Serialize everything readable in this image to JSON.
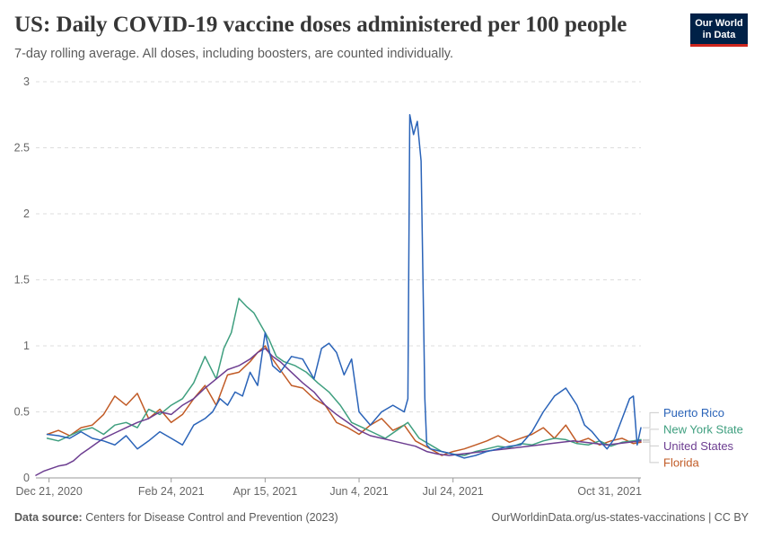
{
  "header": {
    "title": "US: Daily COVID-19 vaccine doses administered per 100 people",
    "subtitle": "7-day rolling average. All doses, including boosters, are counted individually.",
    "logo_line1": "Our World",
    "logo_line2": "in Data"
  },
  "footer": {
    "source_label": "Data source:",
    "source_text": "Centers for Disease Control and Prevention (2023)",
    "url": "OurWorldinData.org/us-states-vaccinations",
    "license": "CC BY"
  },
  "chart_data": {
    "type": "line",
    "title": "US: Daily COVID-19 vaccine doses administered per 100 people",
    "xlabel": "",
    "ylabel": "",
    "ylim": [
      0,
      3
    ],
    "yticks": [
      0,
      0.5,
      1,
      1.5,
      2,
      2.5,
      3
    ],
    "ytick_labels": [
      "0",
      "0.5",
      "1",
      "1.5",
      "2",
      "2.5",
      "3"
    ],
    "x_start": "2020-12-14",
    "x_end": "2021-11-01",
    "x_unit": "days since 2020-12-14",
    "x_range": [
      0,
      322
    ],
    "xticks": [
      7,
      72,
      122,
      172,
      222,
      321
    ],
    "xtick_labels": [
      "Dec 21, 2020",
      "Feb 24, 2021",
      "Apr 15, 2021",
      "Jun 4, 2021",
      "Jul 24, 2021",
      "Oct 31, 2021"
    ],
    "grid": "horizontal dashed",
    "legend": "right, labels at line ends",
    "series": [
      {
        "name": "Florida",
        "color": "#c15b26",
        "x": [
          6,
          12,
          18,
          24,
          30,
          36,
          42,
          48,
          54,
          60,
          66,
          72,
          78,
          84,
          90,
          96,
          102,
          108,
          114,
          118,
          122,
          126,
          130,
          136,
          142,
          148,
          154,
          160,
          166,
          172,
          178,
          184,
          190,
          196,
          202,
          206,
          210,
          216,
          222,
          228,
          234,
          240,
          246,
          252,
          258,
          264,
          270,
          276,
          282,
          288,
          294,
          300,
          306,
          312,
          318,
          322
        ],
        "y": [
          0.33,
          0.36,
          0.32,
          0.38,
          0.4,
          0.48,
          0.62,
          0.55,
          0.64,
          0.45,
          0.52,
          0.42,
          0.48,
          0.6,
          0.7,
          0.55,
          0.78,
          0.8,
          0.88,
          0.95,
          1.0,
          0.9,
          0.82,
          0.7,
          0.68,
          0.6,
          0.55,
          0.42,
          0.38,
          0.33,
          0.4,
          0.45,
          0.36,
          0.4,
          0.28,
          0.25,
          0.22,
          0.17,
          0.2,
          0.22,
          0.25,
          0.28,
          0.32,
          0.27,
          0.3,
          0.33,
          0.38,
          0.3,
          0.4,
          0.27,
          0.3,
          0.25,
          0.28,
          0.3,
          0.26,
          0.27
        ]
      },
      {
        "name": "New York State",
        "color": "#3f9f7f",
        "x": [
          6,
          12,
          18,
          24,
          30,
          36,
          42,
          48,
          54,
          60,
          66,
          72,
          78,
          84,
          90,
          96,
          100,
          104,
          108,
          112,
          116,
          120,
          124,
          128,
          132,
          138,
          144,
          150,
          156,
          162,
          168,
          174,
          180,
          186,
          192,
          198,
          204,
          210,
          216,
          222,
          228,
          234,
          240,
          246,
          252,
          258,
          264,
          270,
          276,
          282,
          288,
          294,
          300,
          306,
          312,
          318,
          322
        ],
        "y": [
          0.3,
          0.28,
          0.32,
          0.36,
          0.38,
          0.33,
          0.4,
          0.42,
          0.38,
          0.52,
          0.48,
          0.55,
          0.6,
          0.72,
          0.92,
          0.75,
          0.98,
          1.1,
          1.36,
          1.3,
          1.25,
          1.15,
          1.05,
          0.92,
          0.88,
          0.85,
          0.8,
          0.72,
          0.65,
          0.55,
          0.42,
          0.38,
          0.34,
          0.3,
          0.36,
          0.42,
          0.3,
          0.25,
          0.2,
          0.18,
          0.17,
          0.2,
          0.22,
          0.24,
          0.23,
          0.26,
          0.25,
          0.28,
          0.3,
          0.29,
          0.26,
          0.25,
          0.28,
          0.24,
          0.27,
          0.28,
          0.29
        ]
      },
      {
        "name": "United States",
        "color": "#6d3e91",
        "x": [
          0,
          4,
          8,
          12,
          16,
          20,
          24,
          28,
          32,
          36,
          42,
          48,
          54,
          60,
          66,
          72,
          78,
          84,
          90,
          96,
          102,
          108,
          114,
          118,
          122,
          126,
          130,
          136,
          142,
          148,
          154,
          160,
          166,
          172,
          178,
          184,
          190,
          196,
          202,
          208,
          214,
          220,
          226,
          232,
          238,
          244,
          250,
          256,
          262,
          268,
          274,
          280,
          286,
          292,
          298,
          304,
          310,
          316,
          322
        ],
        "y": [
          0.02,
          0.05,
          0.07,
          0.09,
          0.1,
          0.13,
          0.18,
          0.22,
          0.26,
          0.3,
          0.34,
          0.38,
          0.42,
          0.45,
          0.5,
          0.48,
          0.55,
          0.6,
          0.68,
          0.75,
          0.82,
          0.85,
          0.9,
          0.95,
          0.98,
          0.92,
          0.88,
          0.8,
          0.72,
          0.65,
          0.55,
          0.48,
          0.42,
          0.36,
          0.32,
          0.3,
          0.28,
          0.26,
          0.24,
          0.2,
          0.18,
          0.17,
          0.18,
          0.19,
          0.2,
          0.21,
          0.22,
          0.23,
          0.24,
          0.25,
          0.26,
          0.27,
          0.28,
          0.27,
          0.26,
          0.25,
          0.26,
          0.27,
          0.28
        ]
      },
      {
        "name": "Puerto Rico",
        "color": "#2a63b8",
        "x": [
          6,
          12,
          18,
          24,
          30,
          36,
          42,
          48,
          54,
          60,
          66,
          72,
          78,
          84,
          90,
          94,
          98,
          102,
          106,
          110,
          114,
          118,
          122,
          126,
          130,
          136,
          142,
          148,
          152,
          156,
          160,
          164,
          168,
          172,
          178,
          184,
          190,
          196,
          198,
          199,
          201,
          203,
          205,
          207,
          208,
          210,
          216,
          222,
          228,
          234,
          240,
          246,
          252,
          258,
          264,
          270,
          276,
          282,
          288,
          292,
          296,
          300,
          304,
          308,
          312,
          316,
          318,
          320,
          322
        ],
        "y": [
          0.33,
          0.32,
          0.3,
          0.35,
          0.3,
          0.28,
          0.25,
          0.32,
          0.22,
          0.28,
          0.35,
          0.3,
          0.25,
          0.4,
          0.45,
          0.5,
          0.6,
          0.55,
          0.65,
          0.62,
          0.8,
          0.7,
          1.1,
          0.85,
          0.8,
          0.92,
          0.9,
          0.75,
          0.98,
          1.02,
          0.95,
          0.78,
          0.9,
          0.5,
          0.4,
          0.5,
          0.55,
          0.5,
          0.6,
          2.75,
          2.6,
          2.7,
          2.4,
          0.6,
          0.25,
          0.22,
          0.2,
          0.18,
          0.15,
          0.17,
          0.2,
          0.22,
          0.24,
          0.25,
          0.35,
          0.5,
          0.62,
          0.68,
          0.55,
          0.4,
          0.35,
          0.28,
          0.22,
          0.3,
          0.45,
          0.6,
          0.62,
          0.25,
          0.38
        ]
      }
    ]
  }
}
